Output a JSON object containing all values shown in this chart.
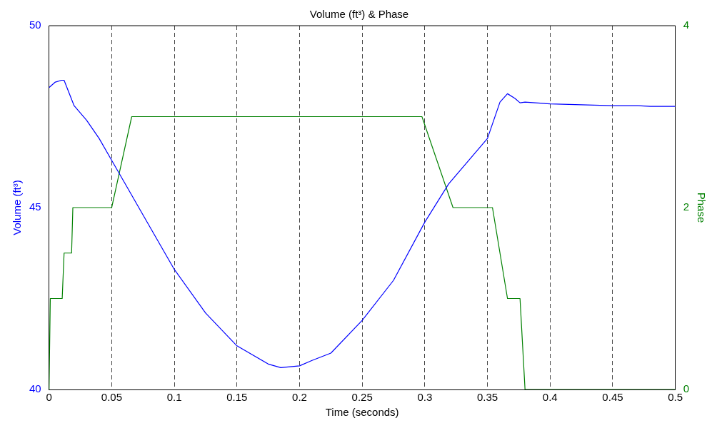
{
  "chart_data": {
    "type": "line",
    "title": "Volume (ft³) & Phase",
    "xlabel": "Time (seconds)",
    "ylabel": "Volume (ft³)",
    "y2label": "Phase",
    "xlim": [
      0,
      0.5
    ],
    "xticks": [
      0,
      0.05,
      0.1,
      0.15,
      0.2,
      0.25,
      0.3,
      0.35,
      0.4,
      0.45,
      0.5
    ],
    "ylim": [
      40,
      50
    ],
    "yticks": [
      40,
      45,
      50
    ],
    "y2lim": [
      0,
      4
    ],
    "y2ticks": [
      0,
      2,
      4
    ],
    "grid": "x",
    "legend": false,
    "marker": "none",
    "line_style": "solid",
    "series": [
      {
        "color": "#0000ff",
        "x": [
          0,
          0.005,
          0.01,
          0.012,
          0.02,
          0.03,
          0.04,
          0.05,
          0.06,
          0.075,
          0.1,
          0.125,
          0.15,
          0.175,
          0.185,
          0.2,
          0.21,
          0.225,
          0.25,
          0.275,
          0.3,
          0.319,
          0.35,
          0.36,
          0.366,
          0.372,
          0.376,
          0.38,
          0.4,
          0.45,
          0.47,
          0.48,
          0.5
        ],
        "values": [
          48.3,
          48.45,
          48.5,
          48.5,
          47.8,
          47.4,
          46.9,
          46.3,
          45.7,
          44.8,
          43.3,
          42.1,
          41.2,
          40.7,
          40.6,
          40.65,
          40.8,
          41.0,
          41.9,
          43.0,
          44.6,
          45.65,
          46.9,
          47.9,
          48.13,
          48.0,
          47.88,
          47.9,
          47.85,
          47.8,
          47.8,
          47.78,
          47.78
        ]
      },
      {
        "color": "#008000",
        "axis": "y2",
        "x": [
          0,
          0.001,
          0.0105,
          0.012,
          0.018,
          0.019,
          0.05,
          0.066,
          0.2977,
          0.3225,
          0.354,
          0.366,
          0.376,
          0.38,
          0.5
        ],
        "values": [
          0,
          1,
          1,
          1.5,
          1.5,
          2,
          2,
          3,
          3,
          2,
          2,
          1,
          1,
          0,
          0
        ]
      }
    ]
  }
}
